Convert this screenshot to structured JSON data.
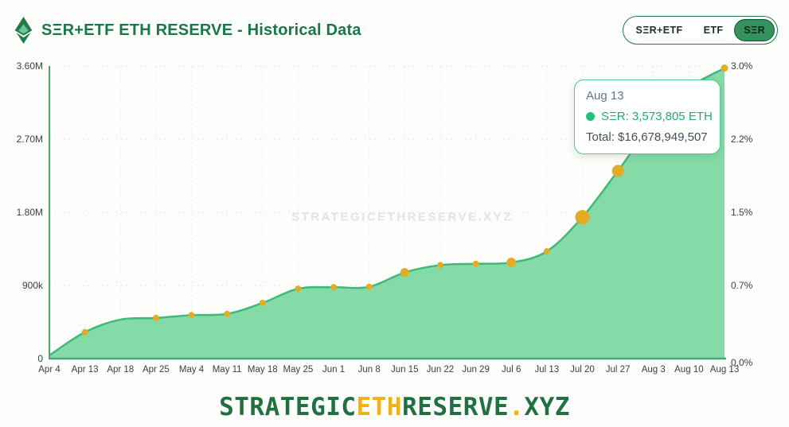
{
  "page": {
    "background": "#fdfdfb"
  },
  "header": {
    "title": "SΞR+ETF ETH RESERVE - Historical Data",
    "logo_icon": "ethereum-diamond-icon",
    "toggle": {
      "options": [
        {
          "label": "SΞR+ETF"
        },
        {
          "label": "ETF"
        },
        {
          "label": "SΞR"
        }
      ],
      "selected": "SΞR"
    }
  },
  "tooltip": {
    "date": "Aug 13",
    "series_line": "SΞR: 3,573,805 ETH",
    "total_line": "Total: $16,678,949,507"
  },
  "watermark": "STRATEGICETHRESERVE.XYZ",
  "footer": {
    "parts": [
      {
        "text": "STRATEGIC",
        "color": "#20713f"
      },
      {
        "text": "ETH",
        "color": "#efb21c"
      },
      {
        "text": "RESERVE",
        "color": "#20713f"
      },
      {
        "text": ".",
        "color": "#efb21c"
      },
      {
        "text": "XYZ",
        "color": "#20713f"
      }
    ]
  },
  "colors": {
    "accent_green": "#17784a",
    "line": "#3eba78",
    "area": "#85dba7",
    "axis": "#4baa73",
    "dot": "#e3ac25",
    "grid": "#e7ece8",
    "tick": "#37433c",
    "tooltip_border": "#54ca8c",
    "tooltip_series_green": "#1dae6b",
    "watermark": "#dbe7df"
  },
  "chart_data": {
    "type": "area",
    "title": "SΞR+ETF ETH RESERVE - Historical Data",
    "categories": [
      "Apr 4",
      "Apr 13",
      "Apr 18",
      "Apr 25",
      "May 4",
      "May 11",
      "May 18",
      "May 25",
      "Jun 1",
      "Jun 8",
      "Jun 15",
      "Jun 22",
      "Jun 29",
      "Jul 6",
      "Jul 13",
      "Jul 20",
      "Jul 27",
      "Aug 3",
      "Aug 10",
      "Aug 13"
    ],
    "series": [
      {
        "name": "SΞR",
        "values": [
          40000,
          325000,
          480000,
          500000,
          535000,
          550000,
          685000,
          860000,
          878000,
          883000,
          1060000,
          1150000,
          1167000,
          1182000,
          1320000,
          1740000,
          2310000,
          2900000,
          3330000,
          3573805
        ]
      }
    ],
    "highlight_point": {
      "category": "Aug 13",
      "value_eth": 3573805,
      "total_usd": "$16,678,949,507"
    },
    "y_left": {
      "min": 0,
      "max": 3600000,
      "ticks": [
        "3.60M",
        "2.70M",
        "1.80M",
        "900k",
        "0"
      ]
    },
    "y_right": {
      "ticks": [
        "3.0%",
        "2.2%",
        "1.5%",
        "0.7%",
        "0.0%"
      ]
    },
    "dot_radii": [
      0,
      4,
      0,
      4,
      4,
      4,
      4,
      4,
      4,
      4,
      5.5,
      4,
      4,
      6,
      4,
      9,
      7.5,
      0,
      0,
      4.5
    ],
    "grid": true,
    "legend_position": "none"
  }
}
